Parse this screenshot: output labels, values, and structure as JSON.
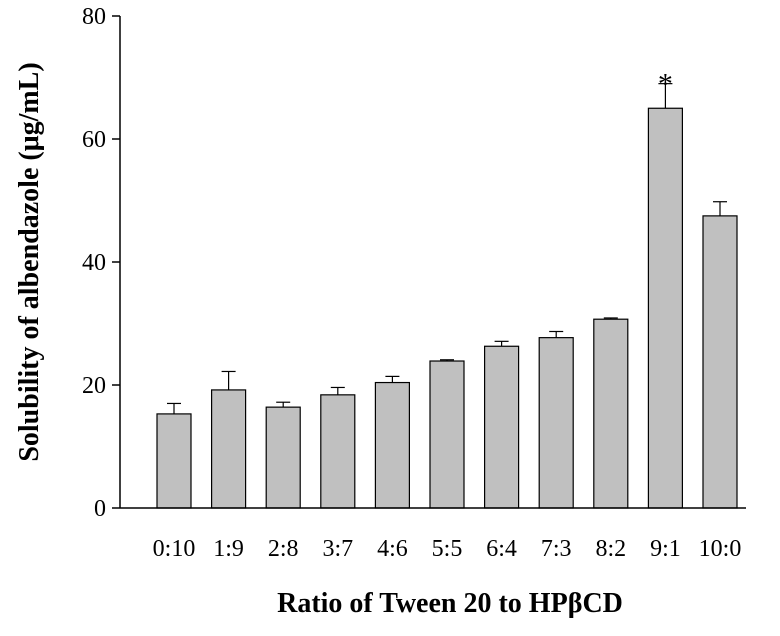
{
  "chart_data": {
    "type": "bar",
    "title": "",
    "xlabel": "Ratio of Tween 20 to HPβCD",
    "ylabel": "Solubility of albendazole (μg/mL)",
    "categories": [
      "0:10",
      "1:9",
      "2:8",
      "3:7",
      "4:6",
      "5:5",
      "6:4",
      "7:3",
      "8:2",
      "9:1",
      "10:0"
    ],
    "values": [
      15.3,
      19.2,
      16.4,
      18.4,
      20.4,
      23.9,
      26.3,
      27.7,
      30.7,
      65.0,
      47.5
    ],
    "errors": [
      1.7,
      3.0,
      0.8,
      1.2,
      1.0,
      0.2,
      0.8,
      1.0,
      0.2,
      4.0,
      2.3
    ],
    "annotations": [
      {
        "category": "9:1",
        "text": "*"
      }
    ],
    "ylim": [
      0,
      80
    ],
    "yticks": [
      0,
      20,
      40,
      60,
      80
    ],
    "bar_color": "#c0c0c0",
    "grid": false,
    "legend": "none"
  }
}
